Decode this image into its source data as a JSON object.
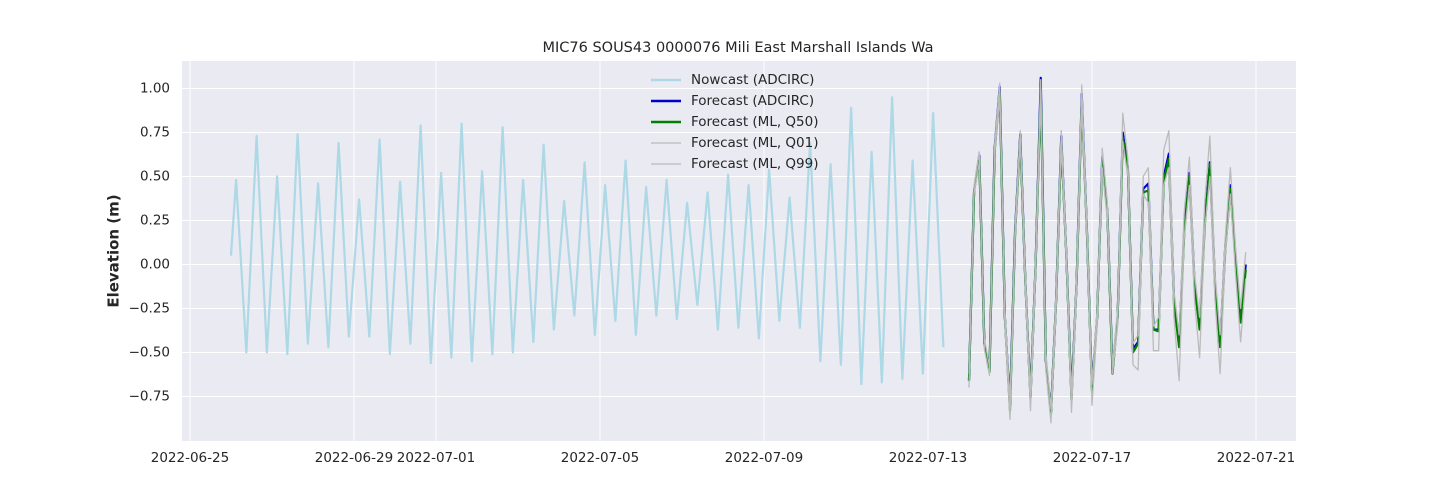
{
  "chart_data": {
    "type": "line",
    "title": "MIC76 SOUS43 0000076 Mili East Marshall Islands Wa",
    "y_label": "Elevation (m)",
    "xlim": [
      "2022-06-24T19:20",
      "2022-07-21T23:25"
    ],
    "xticks": [
      "2022-06-25",
      "2022-06-29",
      "2022-07-01",
      "2022-07-05",
      "2022-07-09",
      "2022-07-13",
      "2022-07-17",
      "2022-07-21"
    ],
    "ylim": [
      -1.003,
      1.156
    ],
    "yticks": [
      {
        "value": -0.75,
        "label": "−0.75"
      },
      {
        "value": -0.5,
        "label": "−0.50"
      },
      {
        "value": -0.25,
        "label": "−0.25"
      },
      {
        "value": 0,
        "label": "0.00"
      },
      {
        "value": 0.25,
        "label": "0.25"
      },
      {
        "value": 0.5,
        "label": "0.50"
      },
      {
        "value": 0.75,
        "label": "0.75"
      },
      {
        "value": 1,
        "label": "1.00"
      }
    ],
    "grid": true,
    "legend": "upper center",
    "series": [
      {
        "name": "Nowcast (ADCIRC)",
        "color": "#add8e6",
        "x": [
          "2022-06-26T00:00",
          "2022-06-26T03:00",
          "2022-06-26T09:00",
          "2022-06-26T15:00",
          "2022-06-26T21:00",
          "2022-06-27T03:00",
          "2022-06-27T09:00",
          "2022-06-27T15:00",
          "2022-06-27T21:00",
          "2022-06-28T03:00",
          "2022-06-28T09:00",
          "2022-06-28T15:00",
          "2022-06-28T21:00",
          "2022-06-29T03:00",
          "2022-06-29T09:00",
          "2022-06-29T15:00",
          "2022-06-29T21:00",
          "2022-06-30T03:00",
          "2022-06-30T09:00",
          "2022-06-30T15:00",
          "2022-06-30T21:00",
          "2022-07-01T03:00",
          "2022-07-01T09:00",
          "2022-07-01T15:00",
          "2022-07-01T21:00",
          "2022-07-02T03:00",
          "2022-07-02T09:00",
          "2022-07-02T15:00",
          "2022-07-02T21:00",
          "2022-07-03T03:00",
          "2022-07-03T09:00",
          "2022-07-03T15:00",
          "2022-07-03T21:00",
          "2022-07-04T03:00",
          "2022-07-04T09:00",
          "2022-07-04T15:00",
          "2022-07-04T21:00",
          "2022-07-05T03:00",
          "2022-07-05T09:00",
          "2022-07-05T15:00",
          "2022-07-05T21:00",
          "2022-07-06T03:00",
          "2022-07-06T09:00",
          "2022-07-06T15:00",
          "2022-07-06T21:00",
          "2022-07-07T03:00",
          "2022-07-07T09:00",
          "2022-07-07T15:00",
          "2022-07-07T21:00",
          "2022-07-08T03:00",
          "2022-07-08T09:00",
          "2022-07-08T15:00",
          "2022-07-08T21:00",
          "2022-07-09T03:00",
          "2022-07-09T09:00",
          "2022-07-09T15:00",
          "2022-07-09T21:00",
          "2022-07-10T03:00",
          "2022-07-10T09:00",
          "2022-07-10T15:00",
          "2022-07-10T21:00",
          "2022-07-11T03:00",
          "2022-07-11T09:00",
          "2022-07-11T15:00",
          "2022-07-11T21:00",
          "2022-07-12T03:00",
          "2022-07-12T09:00",
          "2022-07-12T15:00",
          "2022-07-12T21:00",
          "2022-07-13T03:00",
          "2022-07-13T09:00"
        ],
        "values": [
          0.05,
          0.48,
          -0.5,
          0.73,
          -0.5,
          0.5,
          -0.51,
          0.74,
          -0.45,
          0.46,
          -0.47,
          0.69,
          -0.41,
          0.37,
          -0.41,
          0.71,
          -0.51,
          0.47,
          -0.45,
          0.79,
          -0.56,
          0.52,
          -0.53,
          0.8,
          -0.55,
          0.53,
          -0.51,
          0.78,
          -0.5,
          0.48,
          -0.44,
          0.68,
          -0.37,
          0.36,
          -0.29,
          0.58,
          -0.4,
          0.45,
          -0.32,
          0.59,
          -0.4,
          0.44,
          -0.29,
          0.48,
          -0.31,
          0.35,
          -0.23,
          0.41,
          -0.37,
          0.51,
          -0.36,
          0.45,
          -0.42,
          0.54,
          -0.32,
          0.38,
          -0.36,
          0.69,
          -0.55,
          0.57,
          -0.57,
          0.89,
          -0.68,
          0.64,
          -0.67,
          0.95,
          -0.65,
          0.59,
          -0.62,
          0.86,
          -0.47
        ]
      },
      {
        "name": "Forecast (ADCIRC)",
        "color": "#0000cd",
        "x": [
          "2022-07-14T00:00",
          "2022-07-14T03:00",
          "2022-07-14T06:00",
          "2022-07-14T09:00",
          "2022-07-14T12:00",
          "2022-07-14T15:00",
          "2022-07-14T18:00",
          "2022-07-14T21:00",
          "2022-07-15T00:00",
          "2022-07-15T03:00",
          "2022-07-15T06:00",
          "2022-07-15T09:00",
          "2022-07-15T12:00",
          "2022-07-15T15:00",
          "2022-07-15T18:00",
          "2022-07-15T21:00",
          "2022-07-16T00:00",
          "2022-07-16T03:00",
          "2022-07-16T06:00",
          "2022-07-16T09:00",
          "2022-07-16T12:00",
          "2022-07-16T15:00",
          "2022-07-16T18:00",
          "2022-07-16T21:00",
          "2022-07-17T00:00",
          "2022-07-17T03:00",
          "2022-07-17T06:00",
          "2022-07-17T09:00",
          "2022-07-17T12:00",
          "2022-07-17T15:00",
          "2022-07-17T18:00",
          "2022-07-17T21:00",
          "2022-07-18T00:00",
          "2022-07-18T03:00",
          "2022-07-18T06:00",
          "2022-07-18T09:00",
          "2022-07-18T12:00",
          "2022-07-18T15:00",
          "2022-07-18T18:00",
          "2022-07-18T21:00",
          "2022-07-19T00:00",
          "2022-07-19T03:00",
          "2022-07-19T06:00",
          "2022-07-19T09:00",
          "2022-07-19T12:00",
          "2022-07-19T15:00",
          "2022-07-19T18:00",
          "2022-07-19T21:00",
          "2022-07-20T00:00",
          "2022-07-20T03:00",
          "2022-07-20T06:00",
          "2022-07-20T09:00",
          "2022-07-20T12:00",
          "2022-07-20T15:00",
          "2022-07-20T18:00"
        ],
        "values": [
          -0.66,
          0.42,
          0.62,
          -0.45,
          -0.6,
          0.66,
          1.01,
          -0.3,
          -0.8,
          0.2,
          0.74,
          -0.1,
          -0.75,
          0.0,
          1.06,
          -0.55,
          -0.84,
          -0.2,
          0.73,
          0.05,
          -0.75,
          -0.1,
          0.97,
          0.2,
          -0.7,
          -0.3,
          0.61,
          0.3,
          -0.6,
          -0.3,
          0.75,
          0.55,
          -0.48,
          -0.44,
          0.43,
          0.46,
          -0.37,
          -0.37,
          0.5,
          0.63,
          -0.2,
          -0.45,
          0.2,
          0.52,
          -0.1,
          -0.36,
          0.25,
          0.58,
          -0.1,
          -0.45,
          0.1,
          0.45,
          0.05,
          -0.3,
          0.0
        ]
      },
      {
        "name": "Forecast (ML, Q50)",
        "color": "#008000",
        "x": [
          "2022-07-14T00:00",
          "2022-07-14T03:00",
          "2022-07-14T06:00",
          "2022-07-14T09:00",
          "2022-07-14T12:00",
          "2022-07-14T15:00",
          "2022-07-14T18:00",
          "2022-07-14T21:00",
          "2022-07-15T00:00",
          "2022-07-15T03:00",
          "2022-07-15T06:00",
          "2022-07-15T09:00",
          "2022-07-15T12:00",
          "2022-07-15T15:00",
          "2022-07-15T18:00",
          "2022-07-15T21:00",
          "2022-07-16T00:00",
          "2022-07-16T03:00",
          "2022-07-16T06:00",
          "2022-07-16T09:00",
          "2022-07-16T12:00",
          "2022-07-16T15:00",
          "2022-07-16T18:00",
          "2022-07-16T21:00",
          "2022-07-17T00:00",
          "2022-07-17T03:00",
          "2022-07-17T06:00",
          "2022-07-17T09:00",
          "2022-07-17T12:00",
          "2022-07-17T15:00",
          "2022-07-17T18:00",
          "2022-07-17T21:00",
          "2022-07-18T00:00",
          "2022-07-18T03:00",
          "2022-07-18T06:00",
          "2022-07-18T09:00",
          "2022-07-18T12:00",
          "2022-07-18T15:00",
          "2022-07-18T18:00",
          "2022-07-18T21:00",
          "2022-07-19T00:00",
          "2022-07-19T03:00",
          "2022-07-19T06:00",
          "2022-07-19T09:00",
          "2022-07-19T12:00",
          "2022-07-19T15:00",
          "2022-07-19T18:00",
          "2022-07-19T21:00",
          "2022-07-20T00:00",
          "2022-07-20T03:00",
          "2022-07-20T06:00",
          "2022-07-20T09:00",
          "2022-07-20T12:00",
          "2022-07-20T15:00",
          "2022-07-20T18:00"
        ],
        "values": [
          -0.66,
          0.42,
          0.6,
          -0.45,
          -0.61,
          0.64,
          0.98,
          -0.3,
          -0.83,
          0.18,
          0.72,
          -0.1,
          -0.76,
          0.0,
          1.0,
          -0.55,
          -0.85,
          -0.2,
          0.7,
          0.05,
          -0.77,
          -0.1,
          0.93,
          0.2,
          -0.72,
          -0.3,
          0.58,
          0.3,
          -0.62,
          -0.3,
          0.72,
          0.55,
          -0.5,
          -0.45,
          0.41,
          0.42,
          -0.37,
          -0.38,
          0.48,
          0.6,
          -0.22,
          -0.47,
          0.18,
          0.5,
          -0.12,
          -0.37,
          0.22,
          0.57,
          -0.12,
          -0.47,
          0.08,
          0.43,
          0.03,
          -0.33,
          -0.03
        ]
      },
      {
        "name": "Forecast (ML, Q01)",
        "color": "#bbbbbb",
        "x": [
          "2022-07-14T00:00",
          "2022-07-14T03:00",
          "2022-07-14T06:00",
          "2022-07-14T09:00",
          "2022-07-14T12:00",
          "2022-07-14T15:00",
          "2022-07-14T18:00",
          "2022-07-14T21:00",
          "2022-07-15T00:00",
          "2022-07-15T03:00",
          "2022-07-15T06:00",
          "2022-07-15T09:00",
          "2022-07-15T12:00",
          "2022-07-15T15:00",
          "2022-07-15T18:00",
          "2022-07-15T21:00",
          "2022-07-16T00:00",
          "2022-07-16T03:00",
          "2022-07-16T06:00",
          "2022-07-16T09:00",
          "2022-07-16T12:00",
          "2022-07-16T15:00",
          "2022-07-16T18:00",
          "2022-07-16T21:00",
          "2022-07-17T00:00",
          "2022-07-17T03:00",
          "2022-07-17T06:00",
          "2022-07-17T09:00",
          "2022-07-17T12:00",
          "2022-07-17T15:00",
          "2022-07-17T18:00",
          "2022-07-17T21:00",
          "2022-07-18T00:00",
          "2022-07-18T03:00",
          "2022-07-18T06:00",
          "2022-07-18T09:00",
          "2022-07-18T12:00",
          "2022-07-18T15:00",
          "2022-07-18T18:00",
          "2022-07-18T21:00",
          "2022-07-19T00:00",
          "2022-07-19T03:00",
          "2022-07-19T06:00",
          "2022-07-19T09:00",
          "2022-07-19T12:00",
          "2022-07-19T15:00",
          "2022-07-19T18:00",
          "2022-07-19T21:00",
          "2022-07-20T00:00",
          "2022-07-20T03:00",
          "2022-07-20T06:00",
          "2022-07-20T09:00",
          "2022-07-20T12:00",
          "2022-07-20T15:00",
          "2022-07-20T18:00"
        ],
        "values": [
          -0.7,
          0.4,
          0.58,
          -0.48,
          -0.63,
          0.62,
          0.95,
          -0.35,
          -0.88,
          0.15,
          0.7,
          -0.15,
          -0.83,
          -0.05,
          0.95,
          -0.6,
          -0.9,
          -0.25,
          0.68,
          0.0,
          -0.84,
          -0.15,
          0.9,
          0.15,
          -0.8,
          -0.35,
          0.55,
          0.25,
          -0.62,
          -0.35,
          0.7,
          0.5,
          -0.57,
          -0.6,
          0.4,
          0.35,
          -0.49,
          -0.49,
          0.45,
          0.55,
          -0.3,
          -0.66,
          0.15,
          0.45,
          -0.2,
          -0.53,
          0.2,
          0.5,
          -0.2,
          -0.62,
          0.05,
          0.4,
          -0.05,
          -0.44,
          -0.08
        ]
      },
      {
        "name": "Forecast (ML, Q99)",
        "color": "#bbbbbb",
        "x": [
          "2022-07-14T00:00",
          "2022-07-14T03:00",
          "2022-07-14T06:00",
          "2022-07-14T09:00",
          "2022-07-14T12:00",
          "2022-07-14T15:00",
          "2022-07-14T18:00",
          "2022-07-14T21:00",
          "2022-07-15T00:00",
          "2022-07-15T03:00",
          "2022-07-15T06:00",
          "2022-07-15T09:00",
          "2022-07-15T12:00",
          "2022-07-15T15:00",
          "2022-07-15T18:00",
          "2022-07-15T21:00",
          "2022-07-16T00:00",
          "2022-07-16T03:00",
          "2022-07-16T06:00",
          "2022-07-16T09:00",
          "2022-07-16T12:00",
          "2022-07-16T15:00",
          "2022-07-16T18:00",
          "2022-07-16T21:00",
          "2022-07-17T00:00",
          "2022-07-17T03:00",
          "2022-07-17T06:00",
          "2022-07-17T09:00",
          "2022-07-17T12:00",
          "2022-07-17T15:00",
          "2022-07-17T18:00",
          "2022-07-17T21:00",
          "2022-07-18T00:00",
          "2022-07-18T03:00",
          "2022-07-18T06:00",
          "2022-07-18T09:00",
          "2022-07-18T12:00",
          "2022-07-18T15:00",
          "2022-07-18T18:00",
          "2022-07-18T21:00",
          "2022-07-19T00:00",
          "2022-07-19T03:00",
          "2022-07-19T06:00",
          "2022-07-19T09:00",
          "2022-07-19T12:00",
          "2022-07-19T15:00",
          "2022-07-19T18:00",
          "2022-07-19T21:00",
          "2022-07-20T00:00",
          "2022-07-20T03:00",
          "2022-07-20T06:00",
          "2022-07-20T09:00",
          "2022-07-20T12:00",
          "2022-07-20T15:00",
          "2022-07-20T18:00"
        ],
        "values": [
          -0.62,
          0.45,
          0.64,
          -0.42,
          -0.58,
          0.68,
          1.03,
          -0.25,
          -0.78,
          0.22,
          0.76,
          -0.05,
          -0.73,
          0.05,
          1.05,
          -0.5,
          -0.82,
          -0.15,
          0.76,
          0.1,
          -0.74,
          -0.05,
          1.02,
          0.25,
          -0.68,
          -0.25,
          0.66,
          0.35,
          -0.58,
          -0.25,
          0.86,
          0.6,
          -0.45,
          -0.4,
          0.5,
          0.55,
          -0.35,
          -0.3,
          0.65,
          0.76,
          -0.15,
          -0.4,
          0.3,
          0.61,
          -0.05,
          -0.3,
          0.35,
          0.73,
          -0.05,
          -0.4,
          0.15,
          0.55,
          0.1,
          -0.25,
          0.07
        ]
      }
    ]
  }
}
